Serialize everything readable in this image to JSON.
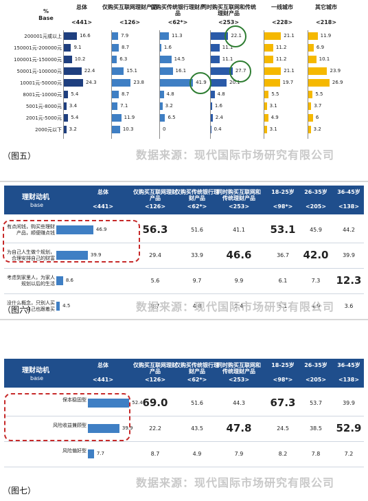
{
  "fig5": {
    "corner": {
      "pct": "%",
      "base": "Base"
    },
    "columns": [
      {
        "title": "总体",
        "base": "<441>"
      },
      {
        "title": "仅购买互联网理财产品",
        "base": "<126>"
      },
      {
        "title": "仅购买传统银行理财产品",
        "base": "<62*>"
      },
      {
        "title": "同时购买互联网和传统理财产品",
        "base": "<253>"
      },
      {
        "title": "一线城市",
        "base": "<228>"
      },
      {
        "title": "其它城市",
        "base": "<218>"
      }
    ],
    "rows": [
      "200001元或以上",
      "150001元-200000元",
      "100001元-150000元",
      "50001元-100000元",
      "10001元-50000元",
      "8001元-10000元",
      "5001元-8000元",
      "2001元-5000元",
      "2000元以下"
    ],
    "values": [
      [
        16.6,
        7.9,
        11.3,
        22.1,
        21.1,
        11.9
      ],
      [
        9.1,
        8.7,
        1.6,
        11.1,
        11.2,
        6.9
      ],
      [
        10.2,
        6.3,
        14.5,
        11.1,
        11.2,
        10.1
      ],
      [
        22.4,
        15.1,
        16.1,
        27.7,
        21.1,
        23.9
      ],
      [
        24.3,
        23.8,
        41.9,
        20.1,
        19.7,
        26.9
      ],
      [
        5.4,
        8.7,
        4.8,
        4.8,
        5.5,
        5.5
      ],
      [
        3.4,
        7.1,
        3.2,
        1.6,
        3.1,
        3.7
      ],
      [
        5.4,
        11.9,
        6.5,
        2.4,
        4.9,
        6.0
      ],
      [
        3.2,
        10.3,
        0,
        0.4,
        3.1,
        3.2
      ]
    ],
    "caption": "（图五）",
    "source": "数据来源：现代国际市场研究有限公司"
  },
  "fig6": {
    "header": {
      "title": "理财动机",
      "base": "base"
    },
    "columns": [
      {
        "title": "总体",
        "base": "<441>"
      },
      {
        "title": "仅购买互联网理财产品",
        "base": "<126>"
      },
      {
        "title": "仅购买传统银行理财产品",
        "base": "<62*>"
      },
      {
        "title": "同时购买互联网和传统理财产品",
        "base": "<253>"
      },
      {
        "title": "18-25岁",
        "base": "<98*>"
      },
      {
        "title": "26-35岁",
        "base": "<205>"
      },
      {
        "title": "36-45岁",
        "base": "<138>"
      }
    ],
    "rows": [
      {
        "label": "有点闲钱，购买些理财产品，顺便赚点钱",
        "values": [
          "46.9",
          "56.3",
          "51.6",
          "41.1",
          "53.1",
          "45.9",
          "44.2"
        ]
      },
      {
        "label": "为自己人生做个规划，合理安排自己的财富",
        "values": [
          "39.9",
          "29.4",
          "33.9",
          "46.6",
          "36.7",
          "42.0",
          "39.9"
        ]
      },
      {
        "label": "考虑到家里人，为家人规划以后的生活",
        "values": [
          "8.6",
          "5.6",
          "9.7",
          "9.9",
          "6.1",
          "7.3",
          "12.3"
        ]
      },
      {
        "label": "没什么概念，只别人买自己也跟着买",
        "values": [
          "4.5",
          "8.7",
          "4.8",
          "2.4",
          "5.1",
          "4.9",
          "3.6"
        ]
      }
    ],
    "caption": "（图六）",
    "source": "数据来源：现代国际市场研究有限公司"
  },
  "fig7": {
    "header": {
      "title": "理财动机",
      "base": "base"
    },
    "columns": [
      {
        "title": "总体",
        "base": "<441>"
      },
      {
        "title": "仅购买互联网理财产品",
        "base": "<126>"
      },
      {
        "title": "仅购买传统银行理财产品",
        "base": "<62*>"
      },
      {
        "title": "同时购买互联网和传统理财产品",
        "base": "<253>"
      },
      {
        "title": "18-25岁",
        "base": "<98*>"
      },
      {
        "title": "26-35岁",
        "base": "<205>"
      },
      {
        "title": "36-45岁",
        "base": "<138>"
      }
    ],
    "rows": [
      {
        "label": "保本稳固型",
        "values": [
          "52.4",
          "69.0",
          "51.6",
          "44.3",
          "67.3",
          "53.7",
          "39.9"
        ]
      },
      {
        "label": "风险收益兼顾型",
        "values": [
          "39.9",
          "22.2",
          "43.5",
          "47.8",
          "24.5",
          "38.5",
          "52.9"
        ]
      },
      {
        "label": "风险偏好型",
        "values": [
          "7.7",
          "8.7",
          "4.9",
          "7.9",
          "8.2",
          "7.8",
          "7.2"
        ]
      }
    ],
    "caption": "（图七）",
    "source": "数据来源：现代国际市场研究有限公司"
  },
  "chart_data": [
    {
      "type": "bar",
      "categories": [
        "200001元或以上",
        "150001元-200000元",
        "100001元-150000元",
        "50001元-100000元",
        "10001元-50000元",
        "8001元-10000元",
        "5001元-8000元",
        "2001元-5000元",
        "2000元以下"
      ],
      "series": [
        {
          "name": "总体",
          "values": [
            16.6,
            9.1,
            10.2,
            22.4,
            24.3,
            5.4,
            3.4,
            5.4,
            3.2
          ]
        },
        {
          "name": "仅购买互联网理财产品",
          "values": [
            7.9,
            8.7,
            6.3,
            15.1,
            23.8,
            8.7,
            7.1,
            11.9,
            10.3
          ]
        },
        {
          "name": "仅购买传统银行理财产品",
          "values": [
            11.3,
            1.6,
            14.5,
            16.1,
            41.9,
            4.8,
            3.2,
            6.5,
            0
          ]
        },
        {
          "name": "同时购买互联网和传统理财产品",
          "values": [
            22.1,
            11.1,
            11.1,
            27.7,
            20.1,
            4.8,
            1.6,
            2.4,
            0.4
          ]
        },
        {
          "name": "一线城市",
          "values": [
            21.1,
            11.2,
            11.2,
            21.1,
            19.7,
            5.5,
            3.1,
            4.9,
            3.1
          ]
        },
        {
          "name": "其它城市",
          "values": [
            11.9,
            6.9,
            10.1,
            23.9,
            26.9,
            5.5,
            3.7,
            6.0,
            3.2
          ]
        }
      ],
      "xlabel": "",
      "ylabel": "%"
    },
    {
      "type": "bar",
      "categories": [
        "有点闲钱，购买些理财产品，顺便赚点钱",
        "为自己人生做个规划，合理安排自己的财富",
        "考虑到家里人，为家人规划以后的生活",
        "没什么概念，只别人买自己也跟着买"
      ],
      "series": [
        {
          "name": "总体",
          "values": [
            46.9,
            39.9,
            8.6,
            4.5
          ]
        }
      ]
    },
    {
      "type": "bar",
      "categories": [
        "保本稳固型",
        "风险收益兼顾型",
        "风险偏好型"
      ],
      "series": [
        {
          "name": "总体",
          "values": [
            52.4,
            39.9,
            7.7
          ]
        }
      ]
    }
  ]
}
